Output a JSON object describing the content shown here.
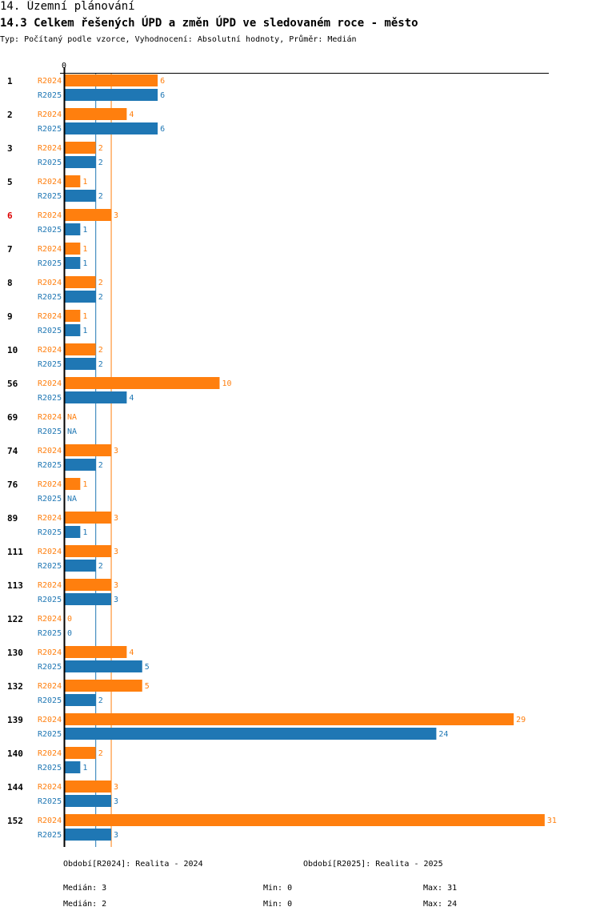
{
  "header": {
    "section": "14. Územní plánování",
    "title": "14.3 Celkem řešených ÚPD a změn ÚPD ve sledovaném roce - město",
    "subtitle": "Typ: Počítaný podle vzorce, Vyhodnocení: Absolutní hodnoty, Průměr: Medián"
  },
  "colors": {
    "r2024": "#ff7f0e",
    "r2025": "#1f77b4",
    "highlight": "#dd0000"
  },
  "chart_data": {
    "type": "bar",
    "orientation": "horizontal",
    "axis_zero_label": "0",
    "highlight_category": "6",
    "categories": [
      "1",
      "2",
      "3",
      "5",
      "6",
      "7",
      "8",
      "9",
      "10",
      "56",
      "69",
      "74",
      "76",
      "89",
      "111",
      "113",
      "122",
      "130",
      "132",
      "139",
      "140",
      "144",
      "152"
    ],
    "series": [
      {
        "name": "R2024",
        "values": [
          6,
          4,
          2,
          1,
          3,
          1,
          2,
          1,
          2,
          10,
          null,
          3,
          1,
          3,
          3,
          3,
          0,
          4,
          5,
          29,
          2,
          3,
          31
        ]
      },
      {
        "name": "R2025",
        "values": [
          6,
          6,
          2,
          2,
          1,
          1,
          2,
          1,
          2,
          4,
          null,
          2,
          null,
          1,
          2,
          3,
          0,
          5,
          2,
          24,
          1,
          3,
          3
        ]
      }
    ],
    "na_label": "NA",
    "median_lines": {
      "R2024": 3,
      "R2025": 2
    },
    "xlim": [
      0,
      31
    ]
  },
  "legend": {
    "r2024": "Období[R2024]: Realita - 2024",
    "r2025": "Období[R2025]: Realita - 2025"
  },
  "stats": {
    "r2024": {
      "median": "Medián: 3",
      "min": "Min: 0",
      "max": "Max: 31"
    },
    "r2025": {
      "median": "Medián: 2",
      "min": "Min: 0",
      "max": "Max: 24"
    }
  }
}
